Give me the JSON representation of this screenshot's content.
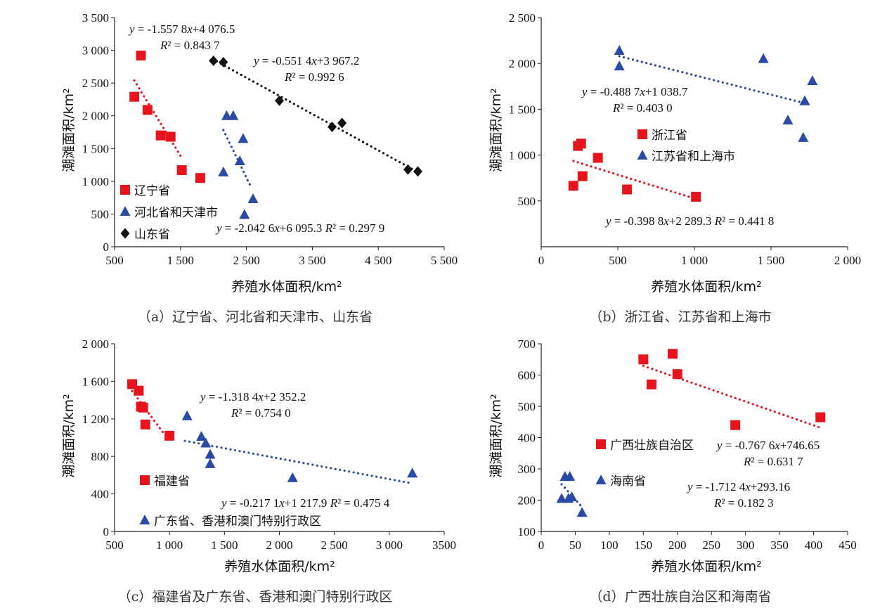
{
  "colors": {
    "red": "#e8141d",
    "blue": "#2b4aa6",
    "black": "#111111"
  },
  "chart_data": [
    {
      "id": "a",
      "type": "scatter",
      "caption": "（a）辽宁省、河北省和天津市、山东省",
      "xlabel": "养殖水体面积/km²",
      "ylabel": "潮滩面积/km²",
      "xlim": [
        500,
        5500
      ],
      "ylim": [
        0,
        3500
      ],
      "xticks": [
        500,
        1500,
        2500,
        3500,
        4500,
        5500
      ],
      "xtick_labels": [
        "500",
        "1 500",
        "2 500",
        "3 500",
        "4 500",
        "5 500"
      ],
      "yticks": [
        0,
        500,
        1000,
        1500,
        2000,
        2500,
        3000,
        3500
      ],
      "ytick_labels": [
        "0",
        "500",
        "1 000",
        "1 500",
        "2 000",
        "2 500",
        "3 000",
        "3 500"
      ],
      "series": [
        {
          "name": "辽宁省",
          "marker": "square",
          "color": "red",
          "points": [
            [
              800,
              2290
            ],
            [
              900,
              2920
            ],
            [
              1000,
              2090
            ],
            [
              1200,
              1700
            ],
            [
              1350,
              1680
            ],
            [
              1520,
              1170
            ],
            [
              1800,
              1050
            ]
          ],
          "trend": {
            "x": [
              800,
              1520
            ]
          },
          "equation": "y = -1.557 8x+4 076.5",
          "r2": "R² = 0.843 7"
        },
        {
          "name": "河北省和天津市",
          "marker": "triangle",
          "color": "blue",
          "points": [
            [
              2150,
              1140
            ],
            [
              2200,
              2000
            ],
            [
              2300,
              2000
            ],
            [
              2400,
              1310
            ],
            [
              2450,
              1650
            ],
            [
              2470,
              490
            ],
            [
              2600,
              730
            ]
          ],
          "trend": {
            "x": [
              2150,
              2550
            ]
          },
          "equation": "y = -2.042 6x+6 095.3",
          "r2": "R² = 0.297 9"
        },
        {
          "name": "山东省",
          "marker": "diamond",
          "color": "black",
          "points": [
            [
              2000,
              2840
            ],
            [
              2150,
              2820
            ],
            [
              3000,
              2230
            ],
            [
              3800,
              1830
            ],
            [
              3950,
              1890
            ],
            [
              4950,
              1180
            ],
            [
              5100,
              1150
            ]
          ],
          "trend": {
            "x": [
              2050,
              5050
            ]
          },
          "equation": "y = -0.551 4x+3 967.2",
          "r2": "R² = 0.992 6"
        }
      ]
    },
    {
      "id": "b",
      "type": "scatter",
      "caption": "（b）浙江省、江苏省和上海市",
      "xlabel": "养殖水体面积/km²",
      "ylabel": "潮滩面积/km²",
      "xlim": [
        0,
        2000
      ],
      "ylim": [
        0,
        2500
      ],
      "xticks": [
        0,
        500,
        1000,
        1500,
        2000
      ],
      "xtick_labels": [
        "0",
        "500",
        "1 000",
        "1 500",
        "2 000"
      ],
      "yticks": [
        500,
        1000,
        1500,
        2000,
        2500
      ],
      "ytick_labels": [
        "500",
        "1 000",
        "1 500",
        "2 000",
        "2 500"
      ],
      "series": [
        {
          "name": "浙江省",
          "marker": "square",
          "color": "red",
          "points": [
            [
              210,
              665
            ],
            [
              240,
              1100
            ],
            [
              260,
              1125
            ],
            [
              270,
              770
            ],
            [
              370,
              970
            ],
            [
              560,
              625
            ],
            [
              1010,
              545
            ]
          ],
          "trend": {
            "x": [
              210,
              1010
            ]
          },
          "equation": "y = -0.398 8x+2 289.3",
          "r2": "R² = 0.441 8"
        },
        {
          "name": "江苏省和上海市",
          "marker": "triangle",
          "color": "blue",
          "points": [
            [
              510,
              2140
            ],
            [
              510,
              1970
            ],
            [
              1450,
              2050
            ],
            [
              1610,
              1380
            ],
            [
              1710,
              1190
            ],
            [
              1720,
              1590
            ],
            [
              1770,
              1810
            ]
          ],
          "trend": {
            "x": [
              510,
              1760
            ]
          },
          "equation": "y = -0.488 7x+1 038.7",
          "r2": "R² = 0.403 0"
        }
      ]
    },
    {
      "id": "c",
      "type": "scatter",
      "caption": "（c）福建省及广东省、香港和澳门特别行政区",
      "xlabel": "养殖水体面积/km²",
      "ylabel": "潮滩面积/km²",
      "xlim": [
        500,
        3500
      ],
      "ylim": [
        0,
        2000
      ],
      "xticks": [
        500,
        1000,
        1500,
        2000,
        2500,
        3000,
        3500
      ],
      "xtick_labels": [
        "500",
        "1 000",
        "1 500",
        "2 000",
        "2 500",
        "3 000",
        "3500"
      ],
      "yticks": [
        0,
        400,
        800,
        1200,
        1600,
        2000
      ],
      "ytick_labels": [
        "0",
        "400",
        "800",
        "1 200",
        "1 600",
        "2 000"
      ],
      "series": [
        {
          "name": "福建省",
          "marker": "square",
          "color": "red",
          "points": [
            [
              660,
              1570
            ],
            [
              720,
              1500
            ],
            [
              740,
              1330
            ],
            [
              760,
              1320
            ],
            [
              780,
              1140
            ],
            [
              1000,
              1020
            ]
          ],
          "trend": {
            "x": [
              660,
              1000
            ]
          },
          "equation": "y = -1.318 4x+2 352.2",
          "r2": "R² = 0.754 0"
        },
        {
          "name": "广东省、香港和澳门特别行政区",
          "marker": "triangle",
          "color": "blue",
          "points": [
            [
              1160,
              1230
            ],
            [
              1290,
              1010
            ],
            [
              1330,
              940
            ],
            [
              1370,
              820
            ],
            [
              1370,
              720
            ],
            [
              2120,
              570
            ],
            [
              3210,
              620
            ]
          ],
          "trend": {
            "x": [
              1140,
              3210
            ]
          },
          "equation": "y = -0.217 1x+1 217.9",
          "r2": "R² = 0.475 4"
        }
      ]
    },
    {
      "id": "d",
      "type": "scatter",
      "caption": "（d）广西壮族自治区和海南省",
      "xlabel": "养殖水体面积/km²",
      "ylabel": "潮滩面积/km²",
      "xlim": [
        0,
        450
      ],
      "ylim": [
        100,
        700
      ],
      "xticks": [
        0,
        50,
        100,
        150,
        200,
        250,
        300,
        350,
        400,
        450
      ],
      "xtick_labels": [
        "0",
        "50",
        "100",
        "150",
        "200",
        "250",
        "300",
        "350",
        "400",
        "450"
      ],
      "yticks": [
        100,
        200,
        300,
        400,
        500,
        600,
        700
      ],
      "ytick_labels": [
        "100",
        "200",
        "300",
        "400",
        "500",
        "600",
        "700"
      ],
      "series": [
        {
          "name": "广西壮族自治区",
          "marker": "square",
          "color": "red",
          "points": [
            [
              150,
              650
            ],
            [
              162,
              570
            ],
            [
              193,
              668
            ],
            [
              200,
              603
            ],
            [
              285,
              440
            ],
            [
              410,
              465
            ]
          ],
          "trend": {
            "x": [
              150,
              410
            ]
          },
          "equation": "y = -0.767 6x+746.65",
          "r2": "R² = 0.631 7"
        },
        {
          "name": "海南省",
          "marker": "triangle",
          "color": "blue",
          "points": [
            [
              30,
              205
            ],
            [
              35,
              275
            ],
            [
              40,
              205
            ],
            [
              42,
              275
            ],
            [
              45,
              210
            ],
            [
              60,
              160
            ]
          ],
          "trend": {
            "x": [
              30,
              60
            ]
          },
          "equation": "y = -1.712 4x+293.16",
          "r2": "R² = 0.182 3"
        }
      ]
    }
  ]
}
